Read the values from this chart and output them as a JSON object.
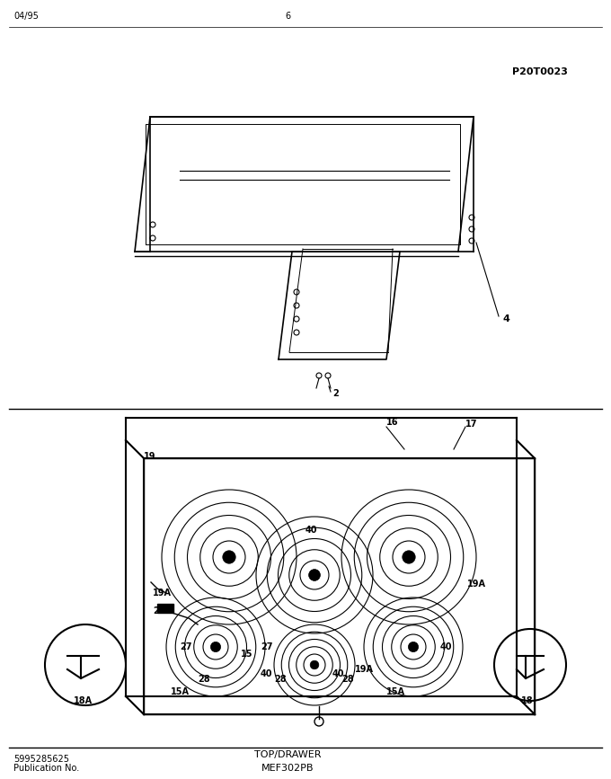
{
  "title": "MEF302PB",
  "subtitle": "TOP/DRAWER",
  "pub_no": "Publication No.",
  "pub_id": "5995285625",
  "date": "04/95",
  "page": "6",
  "part_code": "P20T0023",
  "bg_color": "#ffffff",
  "line_color": "#000000",
  "font_size_title": 9,
  "font_size_label": 7,
  "font_size_small": 6
}
